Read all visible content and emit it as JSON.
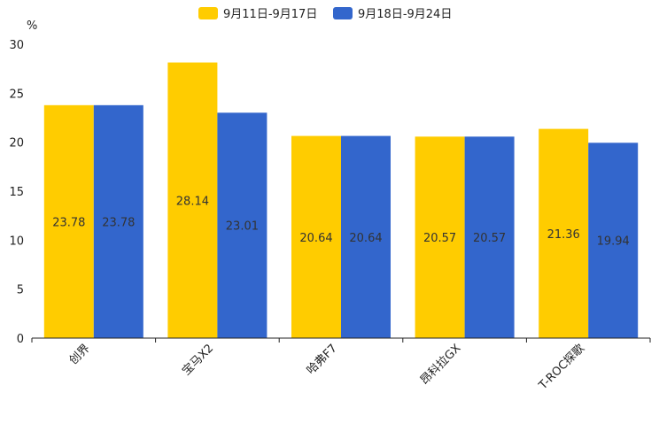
{
  "chart_data": {
    "type": "bar",
    "title": "",
    "unit_label": "%",
    "xlabel": "",
    "ylabel": "%",
    "ylim": [
      0,
      30
    ],
    "y_ticks": [
      0,
      5,
      10,
      15,
      20,
      25,
      30
    ],
    "grid": false,
    "legend_position": "top-center",
    "categories": [
      "创界",
      "宝马X2",
      "哈弗F7",
      "昂科拉GX",
      "T-ROC探歌"
    ],
    "series": [
      {
        "name": "9月11日-9月17日",
        "color": "#FFCC00",
        "values": [
          23.78,
          28.14,
          20.64,
          20.57,
          21.36
        ]
      },
      {
        "name": "9月18日-9月24日",
        "color": "#3366CC",
        "values": [
          23.78,
          23.01,
          20.64,
          20.57,
          19.94
        ]
      }
    ]
  }
}
